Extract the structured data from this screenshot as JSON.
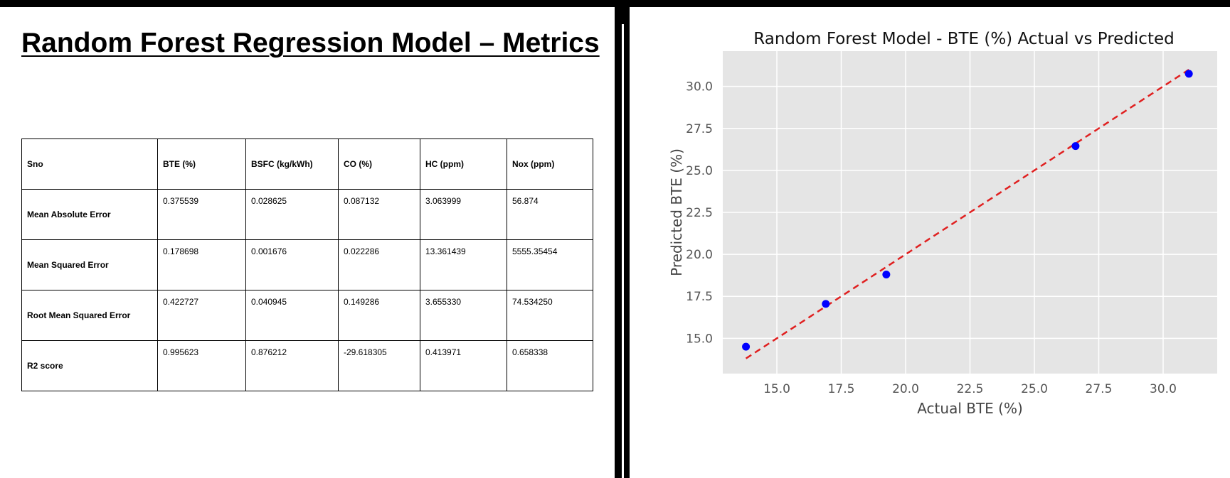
{
  "left": {
    "title": "Random Forest Regression Model – Metrics",
    "table": {
      "headers": [
        "Sno",
        "BTE (%)",
        "BSFC (kg/kWh)",
        "CO (%)",
        "HC (ppm)",
        "Nox (ppm)"
      ],
      "rows": [
        [
          "Mean Absolute Error",
          "0.375539",
          "0.028625",
          "0.087132",
          "3.063999",
          "56.874"
        ],
        [
          "Mean Squared Error",
          "0.178698",
          "0.001676",
          "0.022286",
          "13.361439",
          "5555.35454"
        ],
        [
          "Root Mean Squared Error",
          "0.422727",
          "0.040945",
          "0.149286",
          "3.655330",
          "74.534250"
        ],
        [
          "R2 score",
          "0.995623",
          "0.876212",
          "-29.618305",
          "0.413971",
          "0.658338"
        ]
      ]
    }
  },
  "chart_data": {
    "type": "scatter",
    "title": "Random Forest Model - BTE (%) Actual vs Predicted",
    "xlabel": "Actual BTE (%)",
    "ylabel": "Predicted BTE (%)",
    "xlim": [
      12.9,
      32.1
    ],
    "ylim": [
      12.9,
      32.1
    ],
    "xticks": [
      15.0,
      17.5,
      20.0,
      22.5,
      25.0,
      27.5,
      30.0
    ],
    "yticks": [
      15.0,
      17.5,
      20.0,
      22.5,
      25.0,
      27.5,
      30.0
    ],
    "xtick_labels": [
      "15.0",
      "17.5",
      "20.0",
      "22.5",
      "25.0",
      "27.5",
      "30.0"
    ],
    "ytick_labels": [
      "15.0",
      "17.5",
      "20.0",
      "22.5",
      "25.0",
      "27.5",
      "30.0"
    ],
    "grid": true,
    "series": [
      {
        "kind": "points",
        "color": "#0000ff",
        "x": [
          13.8,
          16.9,
          19.25,
          26.6,
          31.0
        ],
        "y": [
          14.5,
          17.05,
          18.8,
          26.45,
          30.75
        ]
      },
      {
        "kind": "ideal-line",
        "color": "#e02020",
        "x": [
          13.8,
          31.0
        ],
        "y": [
          13.8,
          31.0
        ]
      }
    ],
    "background": "#e5e5e5"
  }
}
